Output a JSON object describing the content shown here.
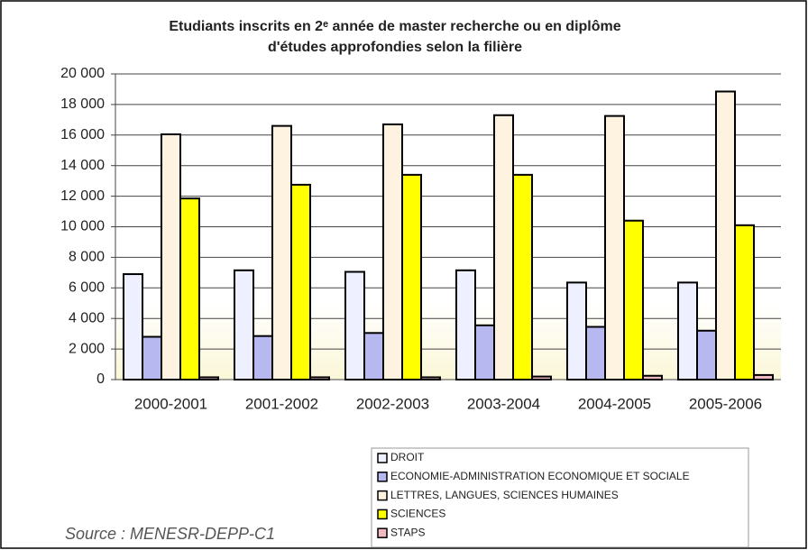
{
  "chart_data": {
    "type": "bar",
    "title": [
      "Etudiants inscrits en 2ᵉ année de master recherche ou en diplôme",
      "d'études approfondies selon la filière"
    ],
    "source": "Source : MENESR-DEPP-C1",
    "categories": [
      "2000-2001",
      "2001-2002",
      "2002-2003",
      "2003-2004",
      "2004-2005",
      "2005-2006"
    ],
    "series": [
      {
        "name": "DROIT",
        "color": "#eef0ff",
        "values": [
          6900,
          7150,
          7050,
          7150,
          6350,
          6350
        ]
      },
      {
        "name": "ECONOMIE-ADMINISTRATION ECONOMIQUE ET SOCIALE",
        "color": "#b8b8f0",
        "values": [
          2800,
          2850,
          3050,
          3550,
          3450,
          3200
        ]
      },
      {
        "name": "LETTRES, LANGUES, SCIENCES HUMAINES",
        "color": "#fdf3e0",
        "values": [
          16050,
          16600,
          16700,
          17300,
          17250,
          18850
        ]
      },
      {
        "name": "SCIENCES",
        "color": "#ffff00",
        "values": [
          11850,
          12750,
          13400,
          13400,
          10400,
          10100
        ]
      },
      {
        "name": "STAPS",
        "color": "#f0b8c0",
        "values": [
          150,
          150,
          150,
          200,
          250,
          300
        ]
      }
    ],
    "ylim": [
      0,
      20000
    ],
    "yticks": [
      0,
      {
        "value": 2000,
        "label": "2 000"
      },
      {
        "value": 4000,
        "label": "4 000"
      },
      {
        "value": 6000,
        "label": "6 000"
      },
      {
        "value": 8000,
        "label": "8 000"
      },
      {
        "value": 10000,
        "label": "10 000"
      },
      {
        "value": 12000,
        "label": "12 000"
      },
      {
        "value": 14000,
        "label": "14 000"
      },
      {
        "value": 16000,
        "label": "16 000"
      },
      {
        "value": 18000,
        "label": "18 000"
      },
      {
        "value": 20000,
        "label": "20 000"
      }
    ],
    "grid": true,
    "legend": "bottom"
  }
}
